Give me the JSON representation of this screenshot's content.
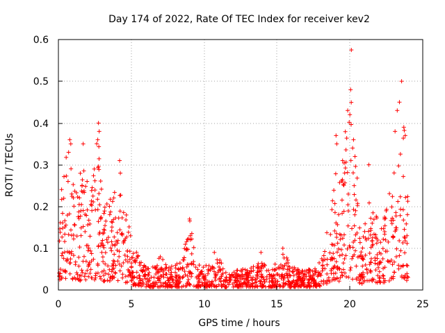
{
  "chart_data": {
    "type": "scatter",
    "title": "Day 174 of 2022, Rate Of TEC Index for receiver kev2",
    "xlabel": "GPS time / hours",
    "ylabel": "ROTI / TECUs",
    "xlim": [
      0,
      25
    ],
    "ylim": [
      0,
      0.6
    ],
    "xticks": [
      "0",
      "5",
      "10",
      "15",
      "20",
      "25"
    ],
    "yticks": [
      "0",
      "0.1",
      "0.2",
      "0.3",
      "0.4",
      "0.5",
      "0.6"
    ],
    "grid": true,
    "marker": "+",
    "color": "#ff0000",
    "envelope": [
      [
        0.0,
        0.15,
        0.06
      ],
      [
        0.25,
        0.28,
        0.06
      ],
      [
        0.5,
        0.33,
        0.07
      ],
      [
        0.75,
        0.36,
        0.07
      ],
      [
        1.0,
        0.3,
        0.06
      ],
      [
        1.25,
        0.27,
        0.07
      ],
      [
        1.5,
        0.29,
        0.06
      ],
      [
        1.75,
        0.33,
        0.07
      ],
      [
        2.0,
        0.25,
        0.06
      ],
      [
        2.25,
        0.24,
        0.06
      ],
      [
        2.5,
        0.3,
        0.07
      ],
      [
        2.75,
        0.4,
        0.07
      ],
      [
        3.0,
        0.24,
        0.06
      ],
      [
        3.25,
        0.21,
        0.06
      ],
      [
        3.5,
        0.22,
        0.06
      ],
      [
        3.75,
        0.23,
        0.06
      ],
      [
        4.0,
        0.24,
        0.06
      ],
      [
        4.25,
        0.3,
        0.07
      ],
      [
        4.5,
        0.2,
        0.05
      ],
      [
        4.75,
        0.18,
        0.05
      ],
      [
        5.0,
        0.12,
        0.04
      ],
      [
        5.25,
        0.1,
        0.03
      ],
      [
        5.5,
        0.08,
        0.03
      ],
      [
        5.75,
        0.07,
        0.025
      ],
      [
        6.0,
        0.06,
        0.02
      ],
      [
        6.5,
        0.06,
        0.02
      ],
      [
        7.0,
        0.08,
        0.02
      ],
      [
        7.5,
        0.06,
        0.02
      ],
      [
        8.0,
        0.06,
        0.02
      ],
      [
        8.5,
        0.07,
        0.02
      ],
      [
        9.0,
        0.17,
        0.03
      ],
      [
        9.5,
        0.06,
        0.02
      ],
      [
        10.0,
        0.06,
        0.02
      ],
      [
        10.5,
        0.06,
        0.02
      ],
      [
        11.0,
        0.08,
        0.02
      ],
      [
        11.5,
        0.05,
        0.02
      ],
      [
        12.0,
        0.05,
        0.02
      ],
      [
        12.5,
        0.05,
        0.02
      ],
      [
        13.0,
        0.05,
        0.02
      ],
      [
        13.5,
        0.06,
        0.02
      ],
      [
        14.0,
        0.07,
        0.02
      ],
      [
        14.5,
        0.05,
        0.02
      ],
      [
        15.0,
        0.07,
        0.02
      ],
      [
        15.5,
        0.09,
        0.02
      ],
      [
        16.0,
        0.06,
        0.02
      ],
      [
        16.5,
        0.05,
        0.02
      ],
      [
        17.0,
        0.05,
        0.02
      ],
      [
        17.5,
        0.05,
        0.02
      ],
      [
        18.0,
        0.07,
        0.025
      ],
      [
        18.25,
        0.1,
        0.03
      ],
      [
        18.5,
        0.16,
        0.05
      ],
      [
        18.75,
        0.2,
        0.05
      ],
      [
        19.0,
        0.33,
        0.07
      ],
      [
        19.25,
        0.25,
        0.06
      ],
      [
        19.5,
        0.3,
        0.07
      ],
      [
        19.75,
        0.42,
        0.07
      ],
      [
        20.0,
        0.48,
        0.08
      ],
      [
        20.1,
        0.57,
        0.08
      ],
      [
        20.25,
        0.36,
        0.06
      ],
      [
        20.5,
        0.28,
        0.06
      ],
      [
        20.75,
        0.12,
        0.04
      ],
      [
        21.0,
        0.15,
        0.05
      ],
      [
        21.25,
        0.22,
        0.06
      ],
      [
        21.5,
        0.2,
        0.05
      ],
      [
        21.75,
        0.19,
        0.05
      ],
      [
        22.0,
        0.15,
        0.05
      ],
      [
        22.25,
        0.2,
        0.05
      ],
      [
        22.5,
        0.19,
        0.05
      ],
      [
        22.75,
        0.24,
        0.05
      ],
      [
        23.0,
        0.35,
        0.07
      ],
      [
        23.25,
        0.38,
        0.07
      ],
      [
        23.5,
        0.5,
        0.08
      ],
      [
        23.75,
        0.38,
        0.07
      ],
      [
        24.0,
        0.21,
        0.05
      ]
    ],
    "peaks": [
      [
        0.7,
        0.33
      ],
      [
        0.78,
        0.36
      ],
      [
        0.85,
        0.35
      ],
      [
        1.7,
        0.35
      ],
      [
        2.75,
        0.4
      ],
      [
        2.8,
        0.38
      ],
      [
        2.7,
        0.36
      ],
      [
        4.2,
        0.31
      ],
      [
        4.25,
        0.28
      ],
      [
        9.0,
        0.17
      ],
      [
        9.05,
        0.13
      ],
      [
        10.7,
        0.09
      ],
      [
        13.9,
        0.09
      ],
      [
        15.4,
        0.1
      ],
      [
        19.05,
        0.37
      ],
      [
        19.1,
        0.35
      ],
      [
        19.5,
        0.31
      ],
      [
        19.85,
        0.43
      ],
      [
        20.05,
        0.48
      ],
      [
        20.1,
        0.575
      ],
      [
        20.0,
        0.42
      ],
      [
        20.25,
        0.36
      ],
      [
        20.35,
        0.32
      ],
      [
        21.3,
        0.3
      ],
      [
        23.1,
        0.38
      ],
      [
        23.25,
        0.43
      ],
      [
        23.4,
        0.45
      ],
      [
        23.55,
        0.5
      ],
      [
        23.7,
        0.39
      ],
      [
        23.8,
        0.37
      ]
    ]
  }
}
